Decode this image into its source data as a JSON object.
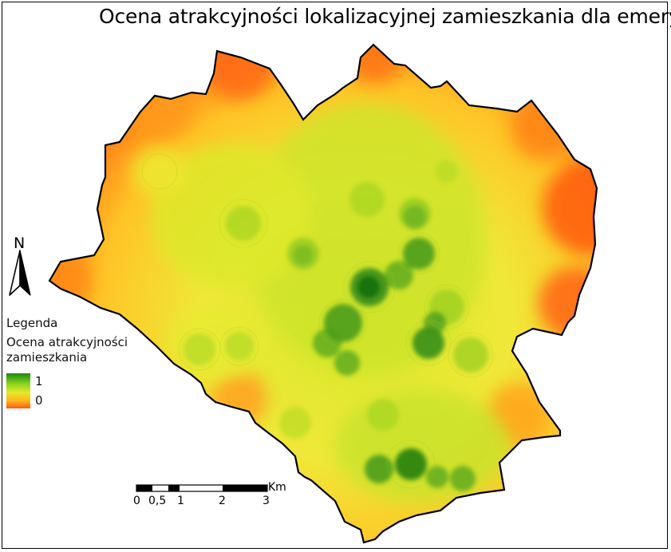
{
  "map": {
    "title": "Ocena atrakcyjności lokalizacyjnej zamieszkania dla emeryta",
    "north_letter": "N",
    "legend": {
      "heading": "Legenda",
      "layer_name": "Ocena atrakcyjności zamieszkania",
      "max_label": "1",
      "min_label": "0",
      "ramp_colors": [
        "#1a8a12",
        "#8ad41e",
        "#e4e82a",
        "#ffb61f",
        "#ff5a10"
      ]
    },
    "scale_bar": {
      "unit": "Km",
      "ticks": [
        "0",
        "0,5",
        "1",
        "2",
        "3"
      ]
    }
  }
}
